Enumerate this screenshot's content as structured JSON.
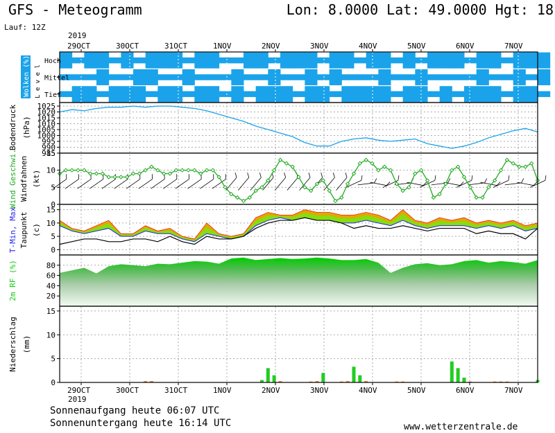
{
  "header": {
    "title": "GFS - Meteogramm",
    "coords": "Lon: 8.0000 Lat: 49.0000 Hgt: 18",
    "run": "Lauf: 12Z"
  },
  "footer": {
    "sunrise": "Sonnenaufgang heute 06:07 UTC",
    "sunset": "Sonnenuntergang heute 16:14 UTC",
    "website": "www.wetterzentrale.de"
  },
  "colors": {
    "cloud": "#1aa3ea",
    "pressure": "#1aa3ea",
    "wind": "#22aa22",
    "tmax": "#ee2222",
    "tmin": "#2222ee",
    "tmax_fill": "#f0a000",
    "range_fill": "#88dd11",
    "humidity": "#11cc11",
    "precip": "#22cc22"
  },
  "chart_data": [
    {
      "type": "heatmap",
      "panel": "clouds",
      "ylabel": "Wolken (%)",
      "ylabel2": "L e v e l",
      "levels": [
        "Hoch",
        "Mittel",
        "Tief"
      ],
      "x_labels": [
        "29OCT",
        "30OCT",
        "31OCT",
        "1NOV",
        "2NOV",
        "3NOV",
        "4NOV",
        "5NOV",
        "6NOV",
        "7NOV"
      ],
      "year": "2019"
    },
    {
      "type": "line",
      "panel": "pressure",
      "ylabel": "Bodendruck",
      "ylabel2": "(hPa)",
      "yticks": [
        985,
        990,
        995,
        1000,
        1005,
        1010,
        1015,
        1020,
        1025
      ],
      "ylim": [
        985,
        1028
      ],
      "x": [
        0,
        6,
        12,
        18,
        24,
        30,
        36,
        42,
        48,
        54,
        60,
        66,
        72,
        78,
        84,
        90,
        96,
        102,
        108,
        114,
        120,
        126,
        132,
        138,
        144,
        150,
        156,
        162,
        168,
        174,
        180,
        186,
        192,
        198,
        204,
        210,
        216,
        222,
        228,
        234
      ],
      "values": [
        1020,
        1022,
        1021,
        1023,
        1024,
        1024,
        1025,
        1024,
        1025,
        1025,
        1024,
        1023,
        1021,
        1018,
        1015,
        1012,
        1008,
        1005,
        1002,
        999,
        994,
        991,
        991,
        995,
        997,
        998,
        996,
        995,
        996,
        997,
        993,
        991,
        989,
        991,
        994,
        998,
        1001,
        1004,
        1006,
        1003
      ]
    },
    {
      "type": "line",
      "panel": "wind",
      "ylabel": "Wind Geschwi.",
      "ylabel2": "Windfahnen",
      "ylabel3": "(kt)",
      "yticks": [
        0,
        5,
        10,
        15
      ],
      "ylim": [
        0,
        15
      ],
      "x": [
        0,
        3,
        6,
        9,
        12,
        15,
        18,
        21,
        24,
        27,
        30,
        33,
        36,
        39,
        42,
        45,
        48,
        51,
        54,
        57,
        60,
        63,
        66,
        69,
        72,
        75,
        78,
        81,
        84,
        87,
        90,
        93,
        96,
        99,
        102,
        105,
        108,
        111,
        114,
        117,
        120,
        123,
        126,
        129,
        132,
        135,
        138,
        141,
        144,
        147,
        150,
        153,
        156,
        159,
        162,
        165,
        168,
        171,
        174,
        177,
        180,
        183,
        186,
        189,
        192,
        195,
        198,
        201,
        204,
        207,
        210,
        213,
        216,
        219,
        222,
        225,
        228,
        231,
        234
      ],
      "values": [
        9,
        10,
        10,
        10,
        10,
        9,
        9,
        9,
        8,
        8,
        8,
        8,
        9,
        9,
        10,
        11,
        10,
        9,
        9,
        10,
        10,
        10,
        10,
        9,
        10,
        10,
        8,
        5,
        3,
        2,
        1,
        2,
        4,
        5,
        7,
        10,
        13,
        12,
        11,
        8,
        5,
        4,
        6,
        7,
        4,
        1,
        2,
        6,
        9,
        12,
        13,
        12,
        10,
        11,
        10,
        6,
        4,
        5,
        9,
        10,
        7,
        2,
        3,
        6,
        10,
        11,
        8,
        5,
        2,
        2,
        5,
        7,
        10,
        13,
        12,
        11,
        11,
        12,
        7
      ]
    },
    {
      "type": "area",
      "panel": "temperature",
      "ylabel": "T-Min, Max",
      "ylabel2": "Taupunkt",
      "ylabel3": "(c)",
      "yticks": [
        0,
        5,
        10,
        15
      ],
      "ylim": [
        -2,
        17
      ],
      "x": [
        0,
        6,
        12,
        18,
        24,
        30,
        36,
        42,
        48,
        54,
        60,
        66,
        72,
        78,
        84,
        90,
        96,
        102,
        108,
        114,
        120,
        126,
        132,
        138,
        144,
        150,
        156,
        162,
        168,
        174,
        180,
        186,
        192,
        198,
        204,
        210,
        216,
        222,
        228,
        234
      ],
      "series": [
        {
          "name": "Max",
          "values": [
            11,
            8,
            7,
            9,
            11,
            6,
            6,
            9,
            7,
            8,
            5,
            4,
            10,
            6,
            5,
            6,
            12,
            14,
            13,
            13,
            15,
            14,
            14,
            13,
            13,
            14,
            13,
            11,
            15,
            11,
            10,
            12,
            11,
            12,
            10,
            11,
            10,
            11,
            9,
            10
          ]
        },
        {
          "name": "Min",
          "values": [
            9,
            7,
            6,
            7,
            8,
            5,
            5,
            7,
            6,
            6,
            4,
            3,
            6,
            5,
            4,
            5,
            9,
            11,
            12,
            11,
            12,
            11,
            11,
            10,
            10,
            11,
            10,
            9,
            11,
            9,
            8,
            9,
            9,
            9,
            8,
            9,
            8,
            9,
            7,
            8
          ]
        },
        {
          "name": "Taupunkt",
          "values": [
            2,
            3,
            4,
            4,
            3,
            3,
            4,
            4,
            3,
            5,
            3,
            2,
            5,
            4,
            4,
            5,
            8,
            10,
            11,
            11,
            12,
            11,
            11,
            10,
            8,
            9,
            8,
            8,
            9,
            8,
            7,
            8,
            8,
            8,
            6,
            7,
            6,
            6,
            4,
            8
          ]
        }
      ]
    },
    {
      "type": "area",
      "panel": "humidity",
      "ylabel": "2m RF (%)",
      "yticks": [
        20,
        40,
        60,
        80
      ],
      "ylim": [
        0,
        100
      ],
      "x": [
        0,
        6,
        12,
        18,
        24,
        30,
        36,
        42,
        48,
        54,
        60,
        66,
        72,
        78,
        84,
        90,
        96,
        102,
        108,
        114,
        120,
        126,
        132,
        138,
        144,
        150,
        156,
        162,
        168,
        174,
        180,
        186,
        192,
        198,
        204,
        210,
        216,
        222,
        228,
        234
      ],
      "values": [
        65,
        70,
        75,
        64,
        78,
        82,
        80,
        78,
        83,
        82,
        85,
        88,
        87,
        83,
        93,
        95,
        90,
        92,
        94,
        92,
        93,
        95,
        93,
        90,
        90,
        92,
        85,
        65,
        75,
        82,
        84,
        80,
        82,
        88,
        90,
        85,
        88,
        86,
        83,
        90
      ]
    },
    {
      "type": "bar",
      "panel": "precipitation",
      "ylabel": "Niederschlag",
      "ylabel2": "(mm)",
      "yticks": [
        0,
        5,
        10,
        15
      ],
      "ylim": [
        0,
        16
      ],
      "x_labels": [
        "29OCT",
        "30OCT",
        "31OCT",
        "1NOV",
        "2NOV",
        "3NOV",
        "4NOV",
        "5NOV",
        "6NOV",
        "7NOV"
      ],
      "year": "2019",
      "x": [
        42,
        45,
        99,
        102,
        105,
        108,
        123,
        126,
        129,
        138,
        141,
        144,
        147,
        150,
        165,
        168,
        192,
        195,
        198,
        201,
        213,
        216,
        219,
        234
      ],
      "values": [
        0.3,
        0.3,
        0.5,
        3.0,
        1.5,
        0.3,
        0.2,
        0.3,
        2.0,
        0.2,
        0.3,
        3.3,
        1.5,
        0.3,
        0.2,
        0.2,
        4.4,
        3.0,
        1.0,
        0.2,
        0.2,
        0.2,
        0.2,
        0.5
      ]
    }
  ]
}
